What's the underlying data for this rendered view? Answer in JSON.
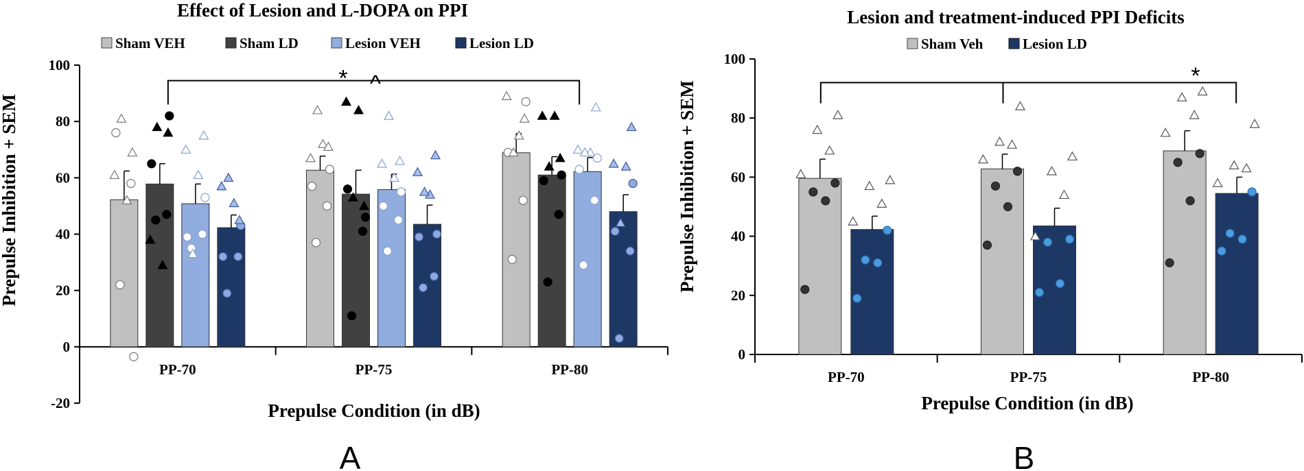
{
  "chart_data": [
    {
      "type": "bar",
      "panel_label": "A",
      "title": "Effect of Lesion and L-DOPA on PPI",
      "xlabel": "Prepulse Condition (in dB)",
      "ylabel": "Prepulse Inhibition + SEM",
      "ylim": [
        -20,
        100
      ],
      "yticks": [
        -20,
        0,
        20,
        40,
        60,
        80,
        100
      ],
      "categories": [
        "PP-70",
        "PP-75",
        "PP-80"
      ],
      "series": [
        {
          "name": "Sham VEH",
          "color": "#c0c0c0",
          "values": [
            52.2,
            62.7,
            68.9
          ],
          "sem": [
            10.2,
            5.0,
            6.8
          ],
          "points": [
            [
              22,
              58,
              76,
              -3.5,
              52,
              61,
              69,
              81
            ],
            [
              37,
              50,
              57,
              63,
              72,
              67,
              71,
              84
            ],
            [
              31,
              52,
              69,
              87,
              75,
              89,
              81,
              69
            ]
          ]
        },
        {
          "name": "Sham LD",
          "color": "#414141",
          "values": [
            57.8,
            54.2,
            61.0
          ],
          "sem": [
            7.2,
            8.5,
            6.5
          ],
          "points": [
            [
              45,
              47,
              65,
              82,
              29,
              38,
              76,
              78
            ],
            [
              11,
              41,
              56,
              46,
              84,
              87,
              50,
              53
            ],
            [
              23,
              47,
              59,
              61,
              82,
              82,
              67,
              64
            ]
          ]
        },
        {
          "name": "Lesion VEH",
          "color": "#91acde",
          "values": [
            50.8,
            55.8,
            62.2
          ],
          "sem": [
            7.0,
            5.5,
            5.0
          ],
          "points": [
            [
              35,
              40,
              39,
              53,
              61,
              70,
              75,
              33
            ],
            [
              34,
              45,
              50,
              55,
              60,
              65,
              66,
              82
            ],
            [
              29,
              52,
              63,
              67,
              69,
              70,
              85,
              69
            ]
          ]
        },
        {
          "name": "Lesion LD",
          "color": "#1e3866",
          "values": [
            42.3,
            43.5,
            48.0
          ],
          "sem": [
            4.5,
            6.8,
            6.0
          ],
          "points": [
            [
              19,
              32,
              32,
              43,
              51,
              57,
              45,
              60
            ],
            [
              21,
              25,
              39,
              40,
              54,
              62,
              68,
              55
            ],
            [
              3,
              34,
              41,
              58,
              64,
              65,
              78,
              44
            ]
          ]
        }
      ],
      "annotations": [
        {
          "text": "*",
          "note": "PP-70 vs PP-80 bracket"
        },
        {
          "text": "^",
          "note": "PP-70 vs PP-80 bracket"
        }
      ],
      "legend_position": "top"
    },
    {
      "type": "bar",
      "panel_label": "B",
      "title": "Lesion and treatment-induced PPI Deficits",
      "xlabel": "Prepulse Condition (in dB)",
      "ylabel": "Prepulse Inhibition + SEM",
      "ylim": [
        0,
        100
      ],
      "yticks": [
        0,
        20,
        40,
        60,
        80,
        100
      ],
      "categories": [
        "PP-70",
        "PP-75",
        "PP-80"
      ],
      "series": [
        {
          "name": "Sham Veh",
          "color": "#c0c0c0",
          "values": [
            59.6,
            62.8,
            68.9
          ],
          "sem": [
            6.5,
            5.0,
            6.8
          ],
          "points": [
            [
              22,
              52,
              55,
              58,
              61,
              69,
              76,
              81
            ],
            [
              37,
              50,
              57,
              62,
              66,
              71,
              72,
              84
            ],
            [
              31,
              52,
              65,
              68,
              75,
              81,
              87,
              89
            ]
          ]
        },
        {
          "name": "Lesion LD",
          "color": "#1e3866",
          "values": [
            42.3,
            43.5,
            54.5
          ],
          "sem": [
            4.5,
            6.0,
            5.5
          ],
          "points": [
            [
              19,
              31,
              32,
              42,
              45,
              51,
              57,
              59
            ],
            [
              21,
              24,
              38,
              39,
              40,
              54,
              62,
              67
            ],
            [
              35,
              39,
              41,
              55,
              58,
              63,
              64,
              78
            ]
          ]
        }
      ],
      "annotations": [
        {
          "text": "*",
          "note": "bracket across PP-70, PP-75, PP-80"
        }
      ],
      "legend_position": "top"
    }
  ]
}
